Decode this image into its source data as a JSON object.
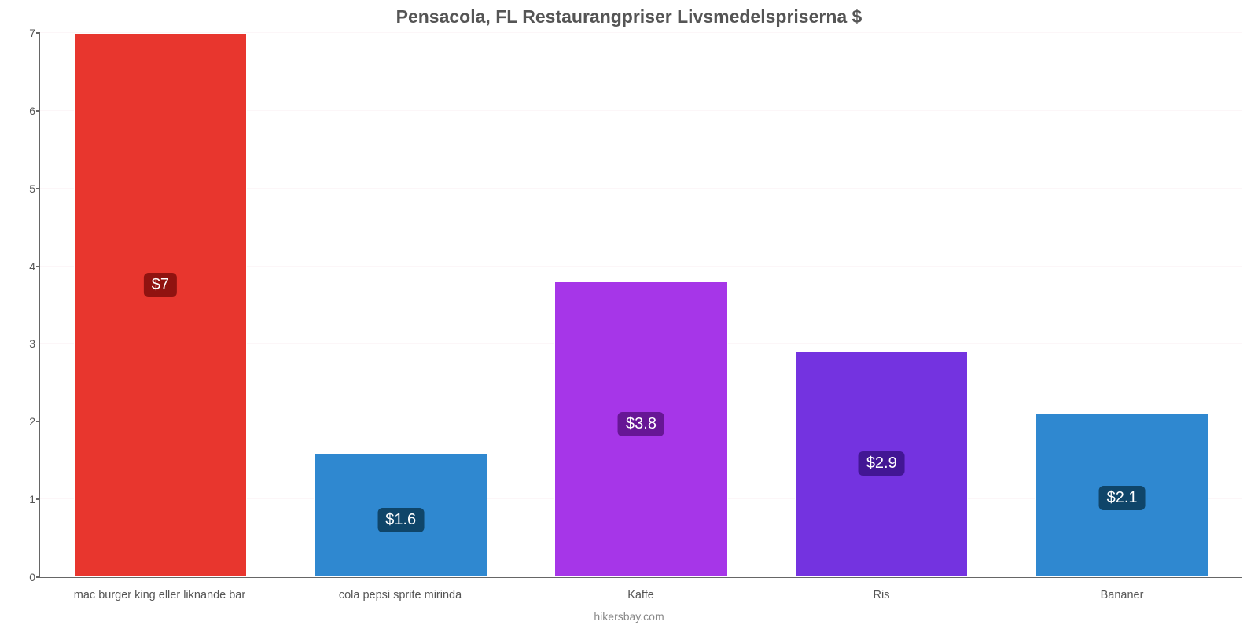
{
  "chart": {
    "type": "bar",
    "title": "Pensacola, FL Restaurangpriser Livsmedelspriserna $",
    "title_fontsize": 23,
    "title_color": "#555555",
    "credit": "hikersbay.com",
    "credit_color": "#888888",
    "credit_fontsize": 14,
    "background_color": "#ffffff",
    "grid_color": "#fcf6f8",
    "axis_color": "#666666",
    "ylim": [
      0,
      7
    ],
    "ytick_step": 1,
    "yticks": [
      "0",
      "1",
      "2",
      "3",
      "4",
      "5",
      "6",
      "7"
    ],
    "ytick_fontsize": 14,
    "bar_width_pct": 72,
    "label_fontsize": 14.5,
    "badge_fontsize": 20,
    "badge_radius": 6,
    "categories": [
      "mac burger king eller liknande bar",
      "cola pepsi sprite mirinda",
      "Kaffe",
      "Ris",
      "Bananer"
    ],
    "values": [
      7,
      1.6,
      3.8,
      2.9,
      2.1
    ],
    "value_labels": [
      "$7",
      "$1.6",
      "$3.8",
      "$2.9",
      "$2.1"
    ],
    "bar_colors": [
      "#e8362e",
      "#2f88d0",
      "#a636e8",
      "#7433e0",
      "#2f88d0"
    ],
    "badge_colors": [
      "#901310",
      "#0f4569",
      "#671695",
      "#421694",
      "#0f4569"
    ],
    "badge_top_pct": 44
  }
}
